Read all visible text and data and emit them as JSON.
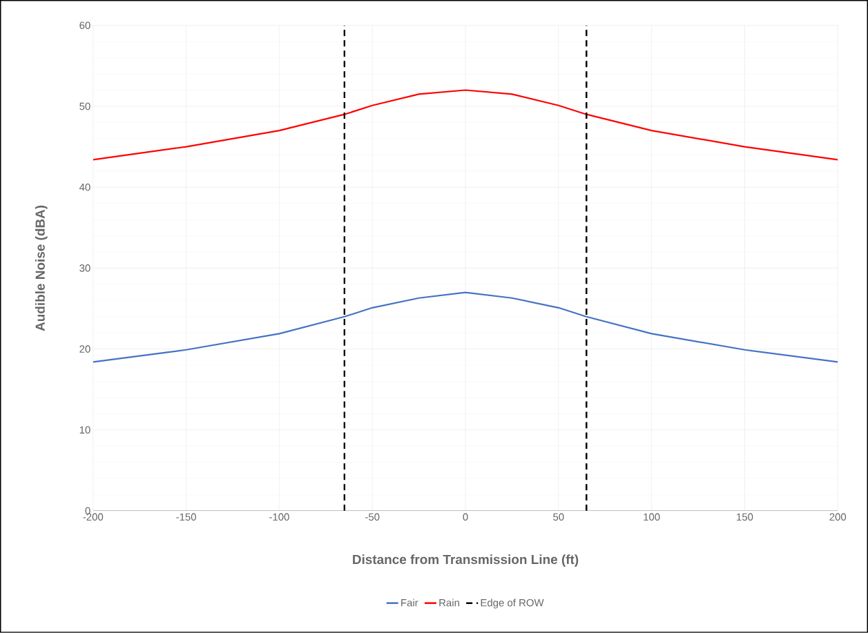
{
  "chart_data": {
    "type": "line",
    "xlabel": "Distance from Transmission Line (ft)",
    "ylabel": "Audible Noise (dBA)",
    "x": [
      -200,
      -150,
      -100,
      -65,
      -50,
      -25,
      0,
      25,
      50,
      65,
      100,
      150,
      200
    ],
    "series": [
      {
        "name": "Fair",
        "color": "#4472c4",
        "line_style": "solid",
        "values": [
          18.4,
          19.9,
          21.9,
          24.0,
          25.1,
          26.3,
          27.0,
          26.3,
          25.1,
          24.0,
          21.9,
          19.9,
          18.4
        ]
      },
      {
        "name": "Rain",
        "color": "#ff0000",
        "line_style": "solid",
        "values": [
          43.4,
          45.0,
          47.0,
          49.0,
          50.1,
          51.5,
          52.0,
          51.5,
          50.1,
          49.0,
          47.0,
          45.0,
          43.4
        ]
      }
    ],
    "ref_lines": [
      {
        "axis": "x",
        "value": -65,
        "label": "Edge of ROW",
        "color": "#000000",
        "line_style": "dashed"
      },
      {
        "axis": "x",
        "value": 65,
        "color": "#000000",
        "line_style": "dashed"
      }
    ],
    "xlim": [
      -200,
      200
    ],
    "ylim": [
      0,
      60
    ],
    "xticks": [
      -200,
      -150,
      -100,
      -50,
      0,
      50,
      100,
      150,
      200
    ],
    "yticks": [
      0,
      10,
      20,
      30,
      40,
      50,
      60
    ],
    "grid": true,
    "legend": "bottom",
    "marker": "none"
  }
}
